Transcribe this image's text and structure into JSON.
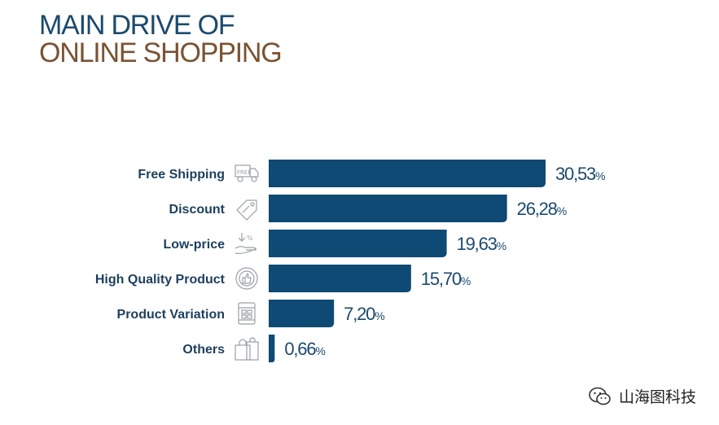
{
  "title": {
    "line1": "MAIN DRIVE OF",
    "line2": "ONLINE SHOPPING"
  },
  "chart_data": {
    "type": "bar",
    "orientation": "horizontal",
    "categories": [
      "Free Shipping",
      "Discount",
      "Low-price",
      "High Quality Product",
      "Product Variation",
      "Others"
    ],
    "values": [
      30.53,
      26.28,
      19.63,
      15.7,
      7.2,
      0.66
    ],
    "value_labels": [
      "30,53",
      "26,28",
      "19,63",
      "15,70",
      "7,20",
      "0,66"
    ],
    "unit": "%",
    "icons": [
      "free-shipping-truck-icon",
      "discount-tag-icon",
      "low-price-hand-icon",
      "quality-thumbs-up-icon",
      "product-variation-shop-icon",
      "shopping-bag-icon"
    ],
    "bar_color": "#0e4a73",
    "xlim": [
      0,
      30.53
    ],
    "grid": false,
    "legend": "none"
  },
  "watermark": {
    "text": "山海图科技"
  }
}
